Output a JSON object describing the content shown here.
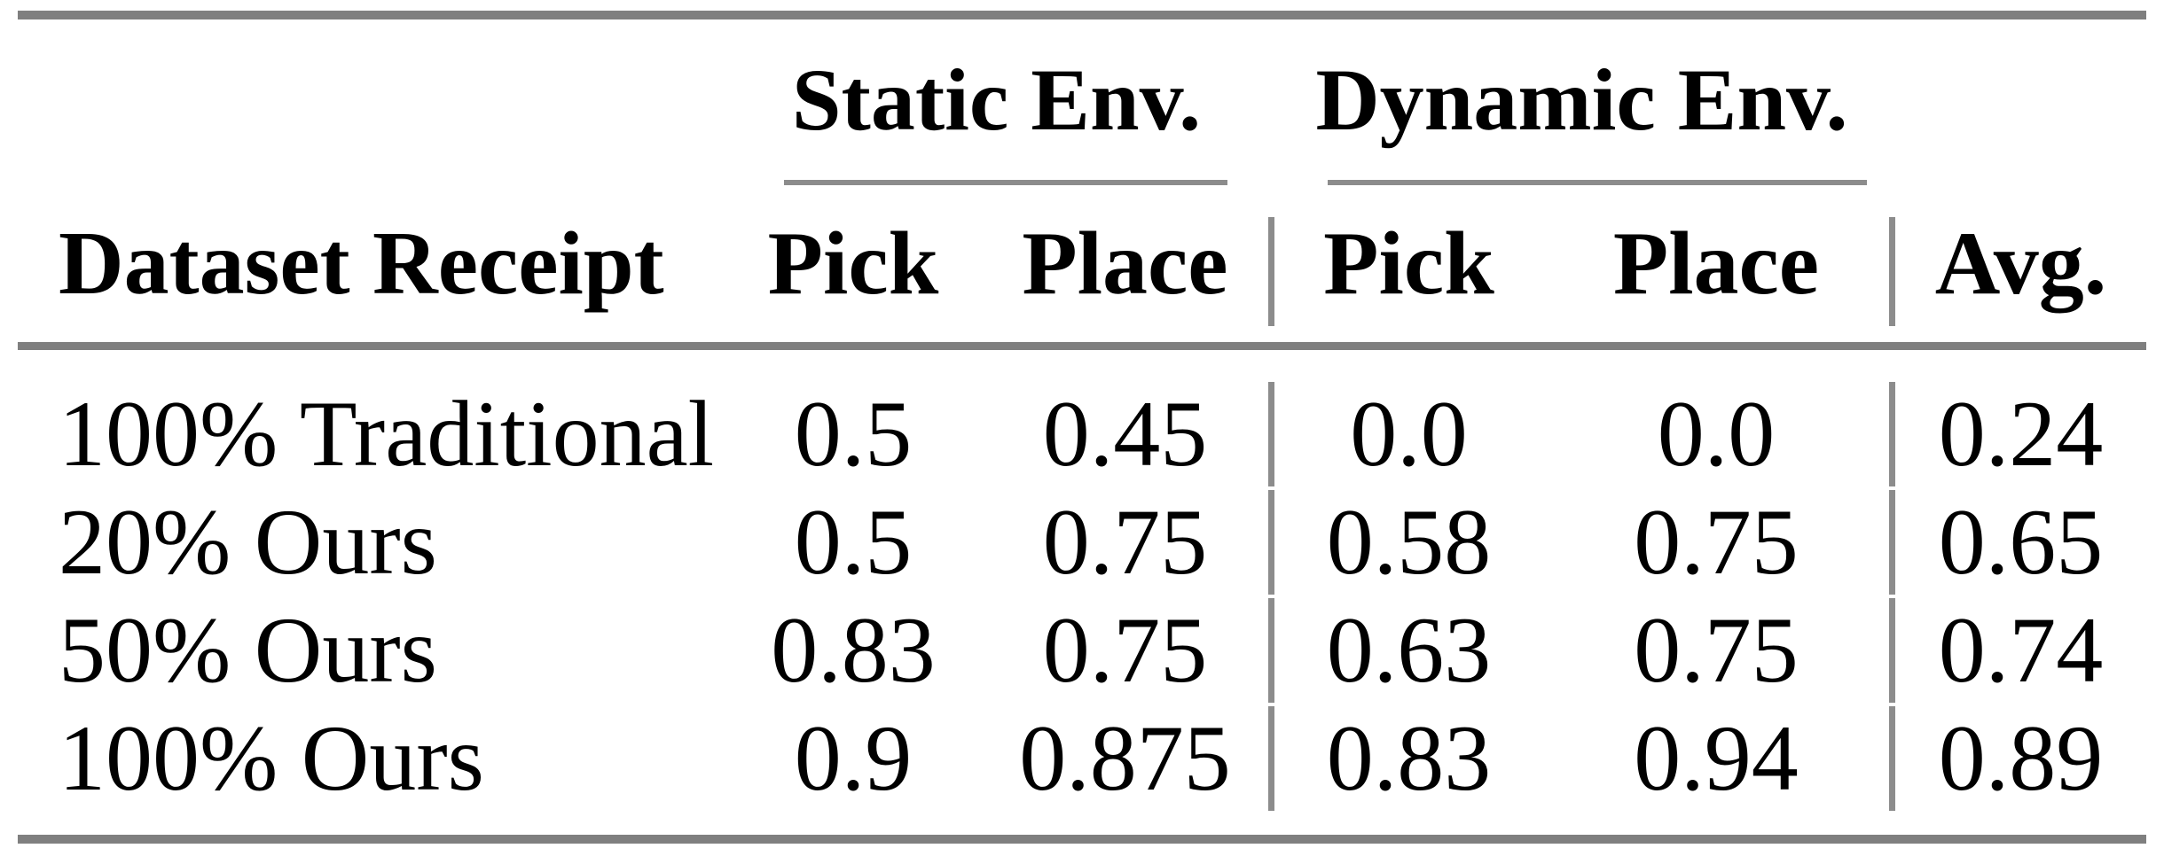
{
  "table": {
    "corner_header": "Dataset Receipt",
    "column_groups": [
      {
        "label": "Static Env.",
        "columns": [
          "Pick",
          "Place"
        ]
      },
      {
        "label": "Dynamic Env.",
        "columns": [
          "Pick",
          "Place"
        ]
      }
    ],
    "avg_header": "Avg.",
    "rows": [
      {
        "label": "100% Traditional",
        "static_pick": "0.5",
        "static_place": "0.45",
        "dynamic_pick": "0.0",
        "dynamic_place": "0.0",
        "avg": "0.24"
      },
      {
        "label": "20% Ours",
        "static_pick": "0.5",
        "static_place": "0.75",
        "dynamic_pick": "0.58",
        "dynamic_place": "0.75",
        "avg": "0.65"
      },
      {
        "label": "50% Ours",
        "static_pick": "0.83",
        "static_place": "0.75",
        "dynamic_pick": "0.63",
        "dynamic_place": "0.75",
        "avg": "0.74"
      },
      {
        "label": "100% Ours",
        "static_pick": "0.9",
        "static_place": "0.875",
        "dynamic_pick": "0.83",
        "dynamic_place": "0.94",
        "avg": "0.89"
      }
    ]
  },
  "colors": {
    "rule_heavy": "#7f7f7f",
    "rule_light": "#8c8c8c",
    "text": "#000000",
    "background": "#ffffff"
  }
}
